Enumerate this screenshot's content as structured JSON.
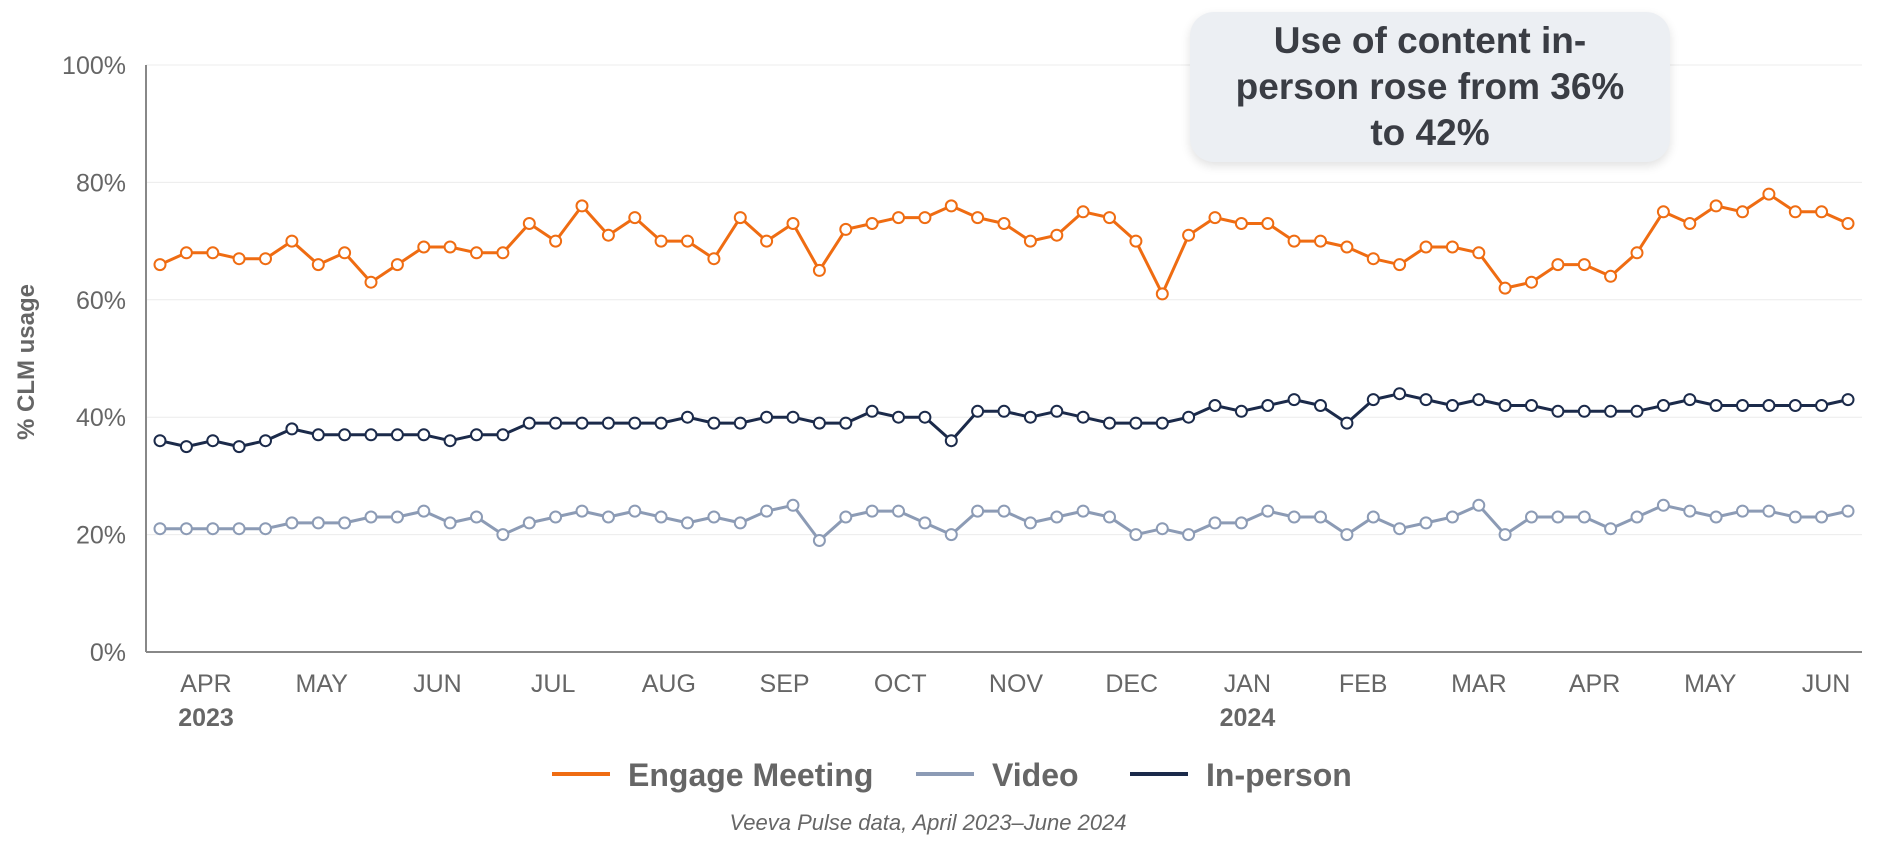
{
  "callout": {
    "text": "Use of content in-person rose from 36% to 42%"
  },
  "source": "Veeva Pulse data, April 2023–June 2024",
  "colors": {
    "engage": "#ef6c12",
    "video": "#8c9bb5",
    "inperson": "#1b2a4a",
    "grid": "#ececec",
    "axis": "#888888"
  },
  "chart_data": {
    "type": "line",
    "ylabel": "% CLM usage",
    "ylim": [
      0,
      100
    ],
    "y_ticks": [
      "0%",
      "20%",
      "40%",
      "60%",
      "80%",
      "100%"
    ],
    "grid": true,
    "legend_position": "bottom",
    "x_ticks": [
      "APR",
      "MAY",
      "JUN",
      "JUL",
      "AUG",
      "SEP",
      "OCT",
      "NOV",
      "DEC",
      "JAN",
      "FEB",
      "MAR",
      "APR",
      "MAY",
      "JUN"
    ],
    "year_labels": [
      "2023",
      "2024"
    ],
    "series": [
      {
        "name": "Engage Meeting",
        "color": "#ef6c12",
        "values": [
          66,
          68,
          68,
          67,
          67,
          70,
          66,
          68,
          63,
          66,
          69,
          69,
          68,
          68,
          73,
          70,
          76,
          71,
          74,
          70,
          70,
          67,
          74,
          70,
          73,
          65,
          72,
          73,
          74,
          74,
          76,
          74,
          73,
          70,
          71,
          75,
          74,
          70,
          61,
          71,
          74,
          73,
          73,
          70,
          70,
          69,
          67,
          66,
          69,
          69,
          68,
          62,
          63,
          66,
          66,
          64,
          68,
          75,
          73,
          76,
          75,
          78,
          75,
          75,
          73
        ]
      },
      {
        "name": "Video",
        "color": "#8c9bb5",
        "values": [
          21,
          21,
          21,
          21,
          21,
          22,
          22,
          22,
          23,
          23,
          24,
          22,
          23,
          20,
          22,
          23,
          24,
          23,
          24,
          23,
          22,
          23,
          22,
          24,
          25,
          19,
          23,
          24,
          24,
          22,
          20,
          24,
          24,
          22,
          23,
          24,
          23,
          20,
          21,
          20,
          22,
          22,
          24,
          23,
          23,
          20,
          23,
          21,
          22,
          23,
          25,
          20,
          23,
          23,
          23,
          21,
          23,
          25,
          24,
          23,
          24,
          24,
          23,
          23,
          24
        ]
      },
      {
        "name": "In-person",
        "color": "#1b2a4a",
        "values": [
          36,
          35,
          36,
          35,
          36,
          38,
          37,
          37,
          37,
          37,
          37,
          36,
          37,
          37,
          39,
          39,
          39,
          39,
          39,
          39,
          40,
          39,
          39,
          40,
          40,
          39,
          39,
          41,
          40,
          40,
          36,
          41,
          41,
          40,
          41,
          40,
          39,
          39,
          39,
          40,
          42,
          41,
          42,
          43,
          42,
          39,
          43,
          44,
          43,
          42,
          43,
          42,
          42,
          41,
          41,
          41,
          41,
          42,
          43,
          42,
          42,
          42,
          42,
          42,
          43
        ]
      }
    ]
  }
}
